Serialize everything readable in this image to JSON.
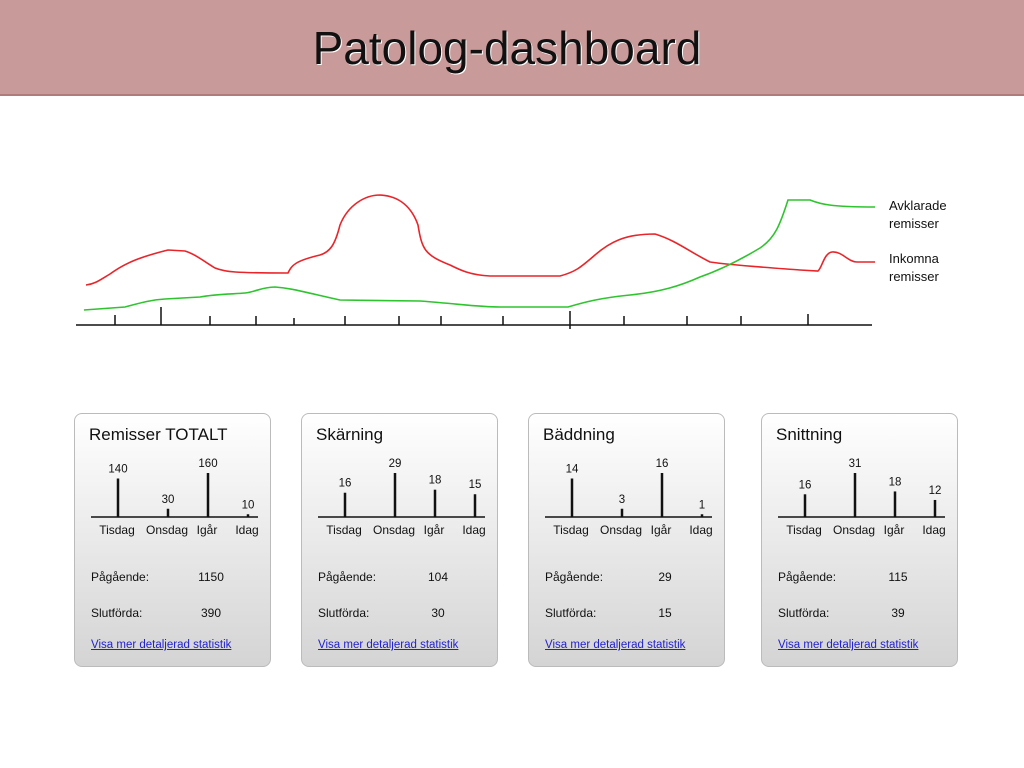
{
  "header": {
    "title": "Patolog-dashboard"
  },
  "overview": {
    "legend": [
      "Avklarade remisser",
      "Inkomna remisser"
    ]
  },
  "cards": [
    {
      "title": "Remisser TOTALT",
      "chart_data": {
        "type": "bar",
        "categories": [
          "Tisdag",
          "Onsdag",
          "Igår",
          "Idag"
        ],
        "values": [
          140,
          30,
          160,
          10
        ]
      },
      "ongoing_label": "Pågående:",
      "ongoing": 1150,
      "done_label": "Slutförda:",
      "done": 390,
      "link": "Visa mer detaljerad statistik"
    },
    {
      "title": "Skärning",
      "chart_data": {
        "type": "bar",
        "categories": [
          "Tisdag",
          "Onsdag",
          "Igår",
          "Idag"
        ],
        "values": [
          16,
          29,
          18,
          15
        ]
      },
      "ongoing_label": "Pågående:",
      "ongoing": 104,
      "done_label": "Slutförda:",
      "done": 30,
      "link": "Visa mer detaljerad statistik"
    },
    {
      "title": "Bäddning",
      "chart_data": {
        "type": "bar",
        "categories": [
          "Tisdag",
          "Onsdag",
          "Igår",
          "Idag"
        ],
        "values": [
          14,
          3,
          16,
          1
        ]
      },
      "ongoing_label": "Pågående:",
      "ongoing": 29,
      "done_label": "Slutförda:",
      "done": 15,
      "link": "Visa mer detaljerad statistik"
    },
    {
      "title": "Snittning",
      "chart_data": {
        "type": "bar",
        "categories": [
          "Tisdag",
          "Onsdag",
          "Igår",
          "Idag"
        ],
        "values": [
          16,
          31,
          18,
          12
        ]
      },
      "ongoing_label": "Pågående:",
      "ongoing": 115,
      "done_label": "Slutförda:",
      "done": 39,
      "link": "Visa mer detaljerad statistik"
    }
  ]
}
